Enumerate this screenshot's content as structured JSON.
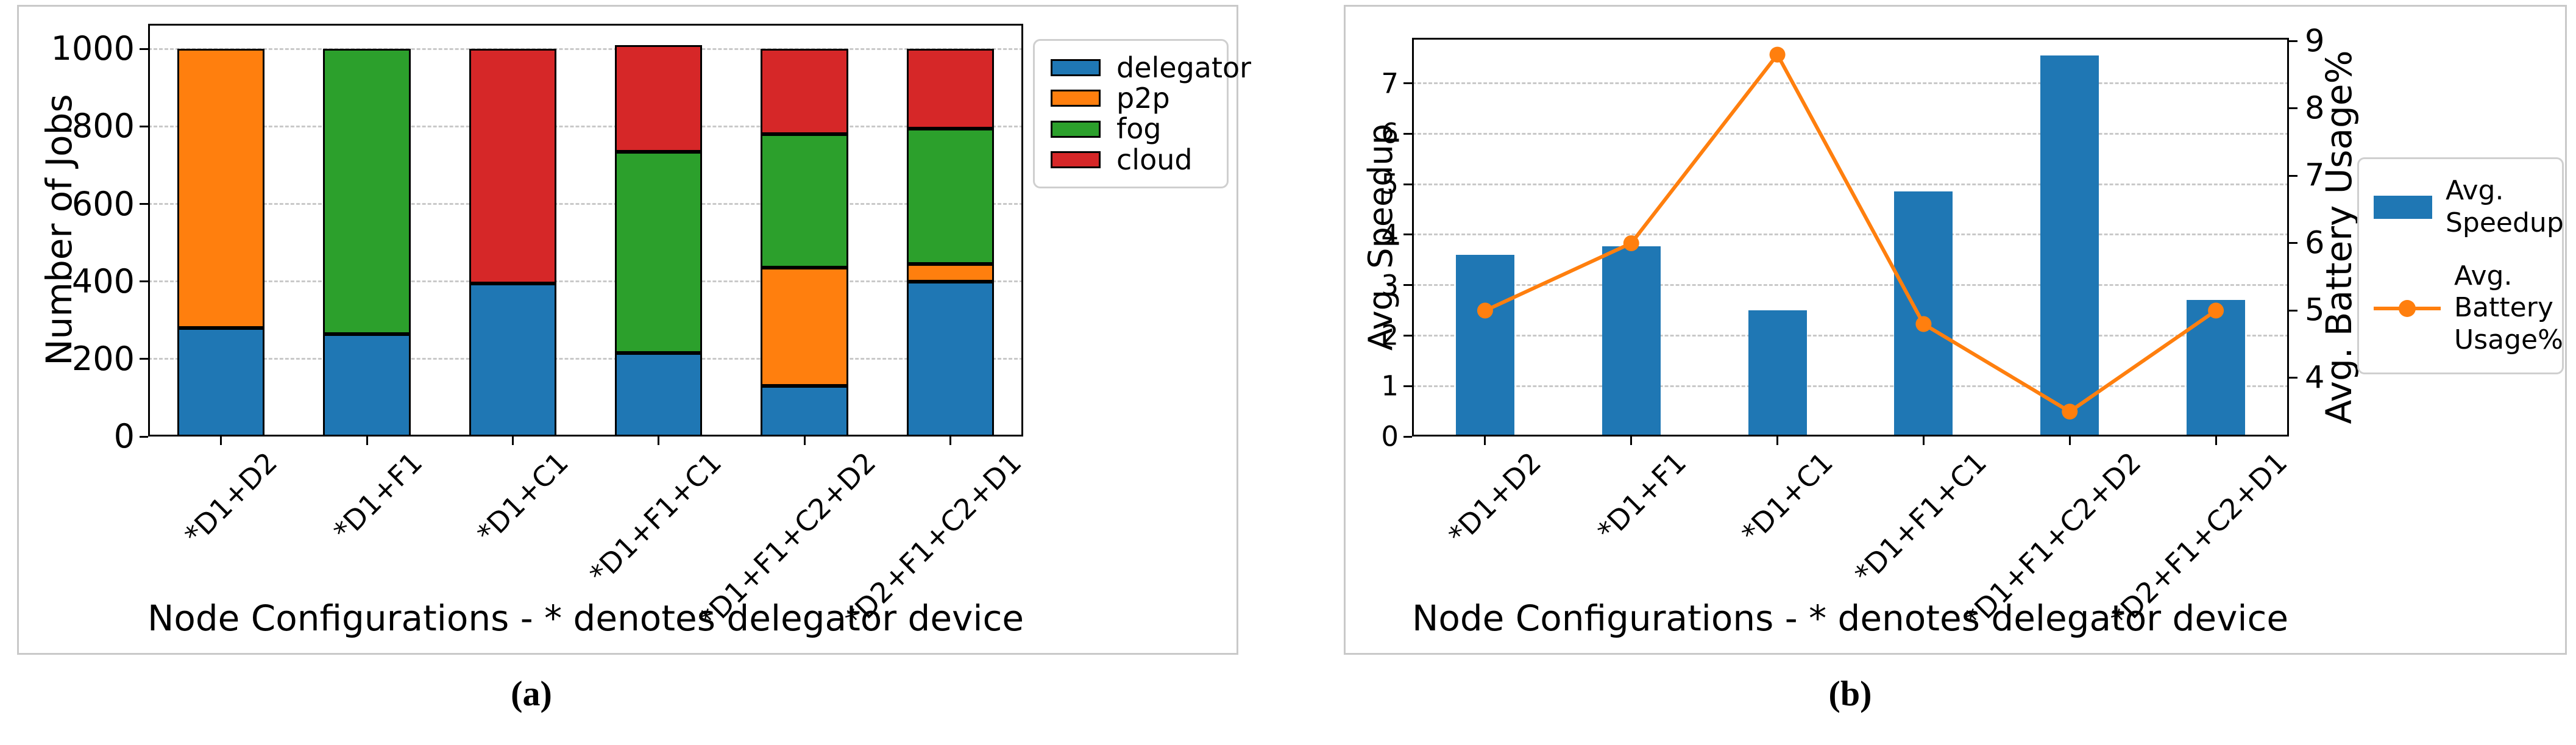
{
  "figure": {
    "captions": {
      "a": "(a)",
      "b": "(b)"
    }
  },
  "chart_data": [
    {
      "id": "job-distribution",
      "type": "bar",
      "stacked": true,
      "categories": [
        "*D1+D2",
        "*D1+F1",
        "*D1+C1",
        "*D1+F1+C1",
        "*D1+F1+C2+D2",
        "*D2+F1+C2+D1"
      ],
      "series": [
        {
          "name": "delegator",
          "color": "#1f77b4",
          "values": [
            280,
            265,
            395,
            215,
            130,
            400
          ]
        },
        {
          "name": "p2p",
          "color": "#ff7f0e",
          "values": [
            720,
            0,
            0,
            0,
            305,
            45
          ]
        },
        {
          "name": "fog",
          "color": "#2ca02c",
          "values": [
            0,
            735,
            0,
            520,
            345,
            350
          ]
        },
        {
          "name": "cloud",
          "color": "#d62728",
          "values": [
            0,
            0,
            605,
            275,
            220,
            205
          ]
        }
      ],
      "xlabel": "Node Configurations - * denotes delegator device",
      "ylabel": "Number of Jobs",
      "ylim": [
        0,
        1065
      ],
      "yticks": [
        0,
        200,
        400,
        600,
        800,
        1000
      ],
      "grid": true,
      "legend_position": "outside upper right"
    },
    {
      "id": "speedup-battery",
      "type": "bar+line",
      "categories": [
        "*D1+D2",
        "*D1+F1",
        "*D1+C1",
        "*D1+F1+C1",
        "*D1+F1+C2+D2",
        "*D2+F1+C2+D1"
      ],
      "series": [
        {
          "name": "Avg.\n Speedup",
          "type": "bar",
          "axis": "left",
          "color": "#1f77b4",
          "values": [
            3.6,
            3.77,
            2.5,
            4.85,
            7.55,
            2.7
          ]
        },
        {
          "name": "Avg.\n Battery\n Usage%",
          "type": "line",
          "axis": "right",
          "color": "#ff7f0e",
          "marker": "circle",
          "values": [
            5.0,
            6.0,
            8.8,
            4.8,
            3.5,
            5.0
          ]
        }
      ],
      "xlabel": "Node Configurations - * denotes delegator device",
      "ylabel_left": "Avg. Speedup",
      "ylabel_right": "Avg. Battery Usage%",
      "ylim_left": [
        0,
        7.9
      ],
      "ylim_right": [
        3.13,
        9.05
      ],
      "yticks_left": [
        0,
        1,
        2,
        3,
        4,
        5,
        6,
        7
      ],
      "yticks_right": [
        4,
        5,
        6,
        7,
        8,
        9
      ],
      "grid": "left-axis-only",
      "legend_position": "outside right"
    }
  ]
}
